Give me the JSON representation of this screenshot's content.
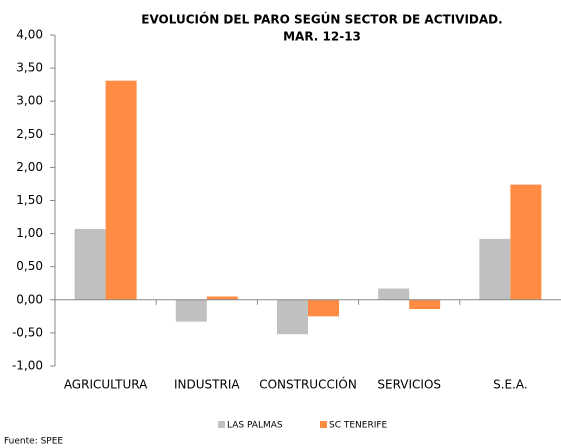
{
  "chart_data": {
    "type": "bar",
    "title": [
      "EVOLUCIÓN DEL PARO SEGÚN SECTOR DE ACTIVIDAD.",
      "MAR. 12-13"
    ],
    "categories": [
      "AGRICULTURA",
      "INDUSTRIA",
      "CONSTRUCCIÓN",
      "SERVICIOS",
      "S.E.A."
    ],
    "series": [
      {
        "name": "LAS PALMAS",
        "color": "#c0c0c0",
        "values": [
          1.07,
          -0.33,
          -0.52,
          0.17,
          0.92
        ]
      },
      {
        "name": "SC TENERIFE",
        "color": "#ff8c42",
        "values": [
          3.31,
          0.05,
          -0.25,
          -0.14,
          1.74
        ]
      }
    ],
    "ylim": [
      -1,
      4
    ],
    "yticks": [
      {
        "value": -1,
        "label": "-1,00"
      },
      {
        "value": -0.5,
        "label": "-0,50"
      },
      {
        "value": 0,
        "label": "0,00"
      },
      {
        "value": 0.5,
        "label": "0,50"
      },
      {
        "value": 1,
        "label": "1,00"
      },
      {
        "value": 1.5,
        "label": "1,50"
      },
      {
        "value": 2,
        "label": "2,00"
      },
      {
        "value": 2.5,
        "label": "2,50"
      },
      {
        "value": 3,
        "label": "3,00"
      },
      {
        "value": 3.5,
        "label": "3,50"
      },
      {
        "value": 4,
        "label": "4,00"
      }
    ],
    "grid": false,
    "legend": "bottom",
    "source": "Fuente: SPEE"
  }
}
